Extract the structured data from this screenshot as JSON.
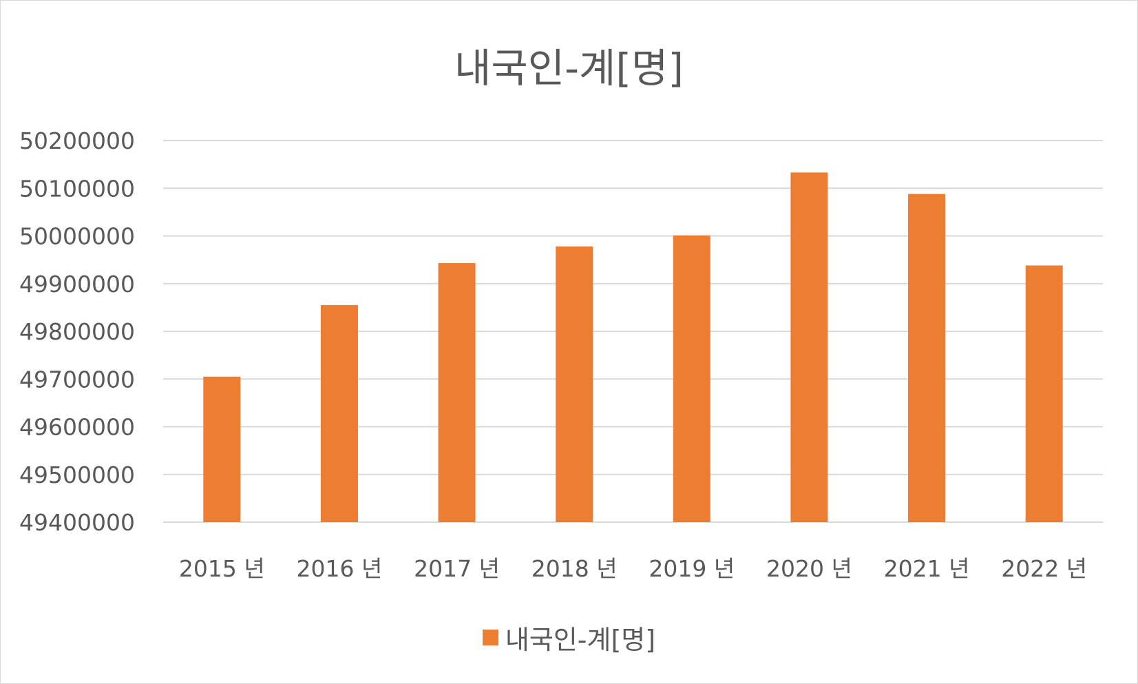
{
  "chart_data": {
    "type": "bar",
    "title": "내국인-계[명]",
    "categories": [
      "2015 년",
      "2016 년",
      "2017 년",
      "2018 년",
      "2019 년",
      "2020 년",
      "2021 년",
      "2022 년"
    ],
    "series": [
      {
        "name": "내국인-계[명]",
        "color": "#ed7d31",
        "values": [
          49705000,
          49855000,
          49943000,
          49978000,
          50001000,
          50133000,
          50088000,
          49938000
        ]
      }
    ],
    "yticks": [
      "50200000",
      "50100000",
      "50000000",
      "49900000",
      "49800000",
      "49700000",
      "49600000",
      "49500000",
      "49400000"
    ],
    "ylim": [
      49400000,
      50200000
    ],
    "xlabel": "",
    "ylabel": "",
    "grid": true,
    "legend_position": "bottom"
  }
}
